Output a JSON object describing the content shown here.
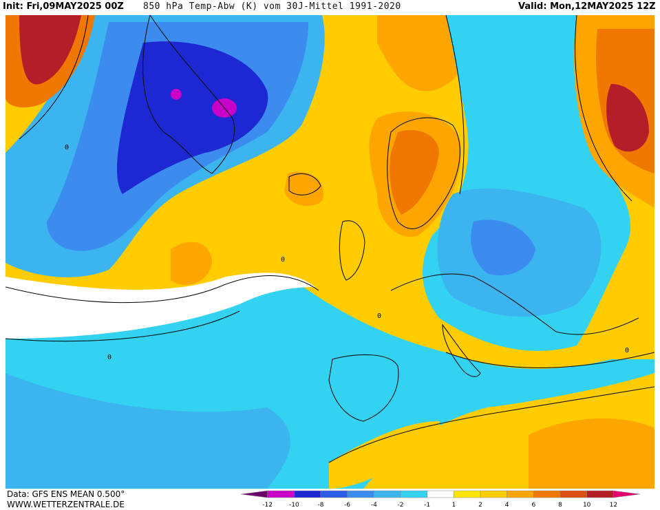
{
  "header": {
    "init": "Init: Fri,09MAY2025 00Z",
    "title": "850 hPa Temp-Abw (K) vom 30J-Mittel 1991-2020",
    "valid": "Valid: Mon,12MAY2025 12Z"
  },
  "footer": {
    "data_source": "Data: GFS ENS MEAN 0.500°",
    "website": "WWW.WETTERZENTRALE.DE"
  },
  "legend": {
    "ticks": [
      "-12",
      "-10",
      "-8",
      "-6",
      "-4",
      "-2",
      "-1",
      "1",
      "2",
      "4",
      "6",
      "8",
      "10",
      "12"
    ],
    "colors": [
      "#6a006a",
      "#c800c8",
      "#1e28d2",
      "#2a5ce6",
      "#3c8cf0",
      "#3cb4f0",
      "#32d2f0",
      "#ffffff",
      "#ffe600",
      "#ffcc00",
      "#ffa500",
      "#f07800",
      "#dc5014",
      "#b41e28",
      "#e6006e"
    ]
  },
  "map": {
    "contour_labels": [
      "0",
      "0",
      "0",
      "0",
      "0"
    ]
  }
}
